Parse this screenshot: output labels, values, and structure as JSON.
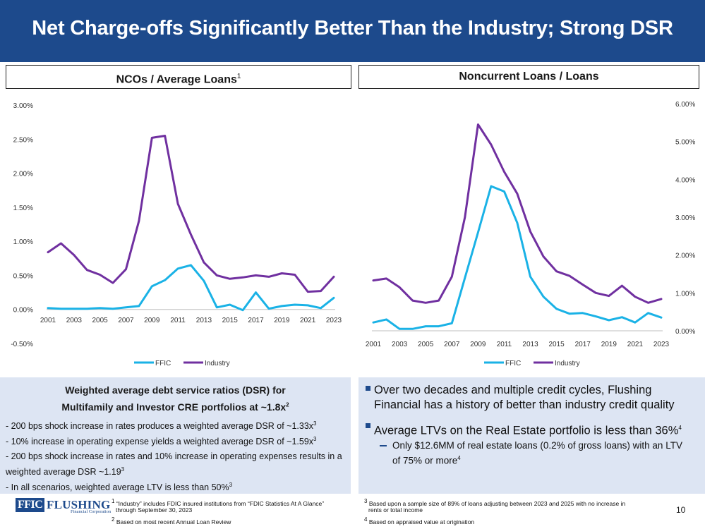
{
  "title": "Net Charge-offs Significantly Better Than the Industry; Strong DSR",
  "chart_data": [
    {
      "type": "line",
      "title": "NCOs / Average Loans",
      "title_sup": "1",
      "x": [
        "2001",
        "2002",
        "2003",
        "2004",
        "2005",
        "2006",
        "2007",
        "2008",
        "2009",
        "2010",
        "2011",
        "2012",
        "2013",
        "2014",
        "2015",
        "2016",
        "2017",
        "2018",
        "2019",
        "2020",
        "2021",
        "2022",
        "2023"
      ],
      "x_tick_labels": [
        "2001",
        "2003",
        "2005",
        "2007",
        "2009",
        "2011",
        "2013",
        "2015",
        "2017",
        "2019",
        "2021",
        "2023"
      ],
      "y_tick_labels": [
        "3.00%",
        "2.50%",
        "2.00%",
        "1.50%",
        "1.00%",
        "0.50%",
        "0.00%",
        "-0.50%"
      ],
      "ylim": [
        -0.5,
        3.0
      ],
      "y_ticks": [
        3.0,
        2.5,
        2.0,
        1.5,
        1.0,
        0.5,
        0.0,
        -0.5
      ],
      "series": [
        {
          "name": "FFIC",
          "color": "#1ab2e6",
          "values": [
            0.02,
            0.01,
            0.01,
            0.01,
            0.02,
            0.01,
            0.03,
            0.05,
            0.34,
            0.43,
            0.6,
            0.65,
            0.42,
            0.03,
            0.07,
            -0.01,
            0.25,
            0.01,
            0.05,
            0.07,
            0.06,
            0.02,
            0.17
          ]
        },
        {
          "name": "Industry",
          "color": "#7030a0",
          "values": [
            0.84,
            0.97,
            0.8,
            0.58,
            0.51,
            0.39,
            0.59,
            1.3,
            2.52,
            2.55,
            1.55,
            1.1,
            0.69,
            0.5,
            0.45,
            0.47,
            0.5,
            0.48,
            0.53,
            0.51,
            0.26,
            0.27,
            0.48
          ]
        }
      ],
      "legend": [
        "FFIC",
        "Industry"
      ]
    },
    {
      "type": "line",
      "title": "Noncurrent Loans / Loans",
      "x": [
        "2001",
        "2002",
        "2003",
        "2004",
        "2005",
        "2006",
        "2007",
        "2008",
        "2009",
        "2010",
        "2011",
        "2012",
        "2013",
        "2014",
        "2015",
        "2016",
        "2017",
        "2018",
        "2019",
        "2020",
        "2021",
        "2022",
        "2023"
      ],
      "x_tick_labels": [
        "2001",
        "2003",
        "2005",
        "2007",
        "2009",
        "2011",
        "2013",
        "2015",
        "2017",
        "2019",
        "2021",
        "2023"
      ],
      "y_tick_labels": [
        "6.00%",
        "5.00%",
        "4.00%",
        "3.00%",
        "2.00%",
        "1.00%",
        "0.00%"
      ],
      "ylim": [
        0.0,
        6.0
      ],
      "y_ticks": [
        6.0,
        5.0,
        4.0,
        3.0,
        2.0,
        1.0,
        0.0
      ],
      "series": [
        {
          "name": "FFIC",
          "color": "#1ab2e6",
          "values": [
            0.22,
            0.3,
            0.05,
            0.05,
            0.12,
            0.12,
            0.2,
            1.4,
            2.6,
            3.82,
            3.68,
            2.85,
            1.43,
            0.9,
            0.58,
            0.45,
            0.47,
            0.38,
            0.28,
            0.36,
            0.22,
            0.47,
            0.35
          ]
        },
        {
          "name": "Industry",
          "color": "#7030a0",
          "values": [
            1.33,
            1.38,
            1.15,
            0.8,
            0.74,
            0.8,
            1.43,
            3.0,
            5.45,
            4.92,
            4.2,
            3.62,
            2.62,
            1.96,
            1.57,
            1.45,
            1.22,
            1.0,
            0.92,
            1.19,
            0.9,
            0.74,
            0.84
          ]
        }
      ],
      "legend": [
        "FFIC",
        "Industry"
      ]
    }
  ],
  "dsr": {
    "heading_line1": "Weighted average debt service ratios (DSR) for",
    "heading_line2": "Multifamily and  Investor CRE portfolios at ~1.8x",
    "heading_sup": "2",
    "items": [
      {
        "text": "- 200 bps shock increase in rates produces a weighted average DSR of ~1.33x",
        "sup": "3"
      },
      {
        "text": "- 10% increase in operating expense yields a weighted average DSR of ~1.59x",
        "sup": "3"
      },
      {
        "text": "- 200 bps shock increase in rates and 10% increase in operating expenses results in a",
        "sup": ""
      },
      {
        "text": "  weighted average DSR ~1.19",
        "sup": "3"
      },
      {
        "text": "- In all scenarios, weighted average LTV is less than 50%",
        "sup": "3"
      }
    ]
  },
  "bullets": {
    "b1_line1": "Over two decades and multiple credit cycles, Flushing",
    "b1_line2": "Financial has a history of better than industry credit quality",
    "b2": "Average LTVs on the Real Estate portfolio is less than 36%",
    "b2_sup": "4",
    "sub_line1": "Only $12.6MM of real estate loans (0.2% of gross loans) with an LTV",
    "sub_line2": "of 75% or more",
    "sub_sup": "4"
  },
  "footnotes": {
    "f1_sup": "1",
    "f1_line1": "“Industry” includes FDIC insured institutions from “FDIC Statistics At A Glance”",
    "f1_line2": "through September 30, 2023",
    "f2_sup": "2",
    "f2": "Based on most recent Annual Loan Review",
    "f3_sup": "3",
    "f3_line1": "Based upon a sample size of 89% of loans adjusting between 2023 and 2025 with no increase in",
    "f3_line2": "rents or total income",
    "f4_sup": "4",
    "f4": "Based on appraised value at origination"
  },
  "logo": {
    "ffic": "FFIC",
    "name": "FLUSHING",
    "sub": "Financial Corporation"
  },
  "page_number": "10"
}
